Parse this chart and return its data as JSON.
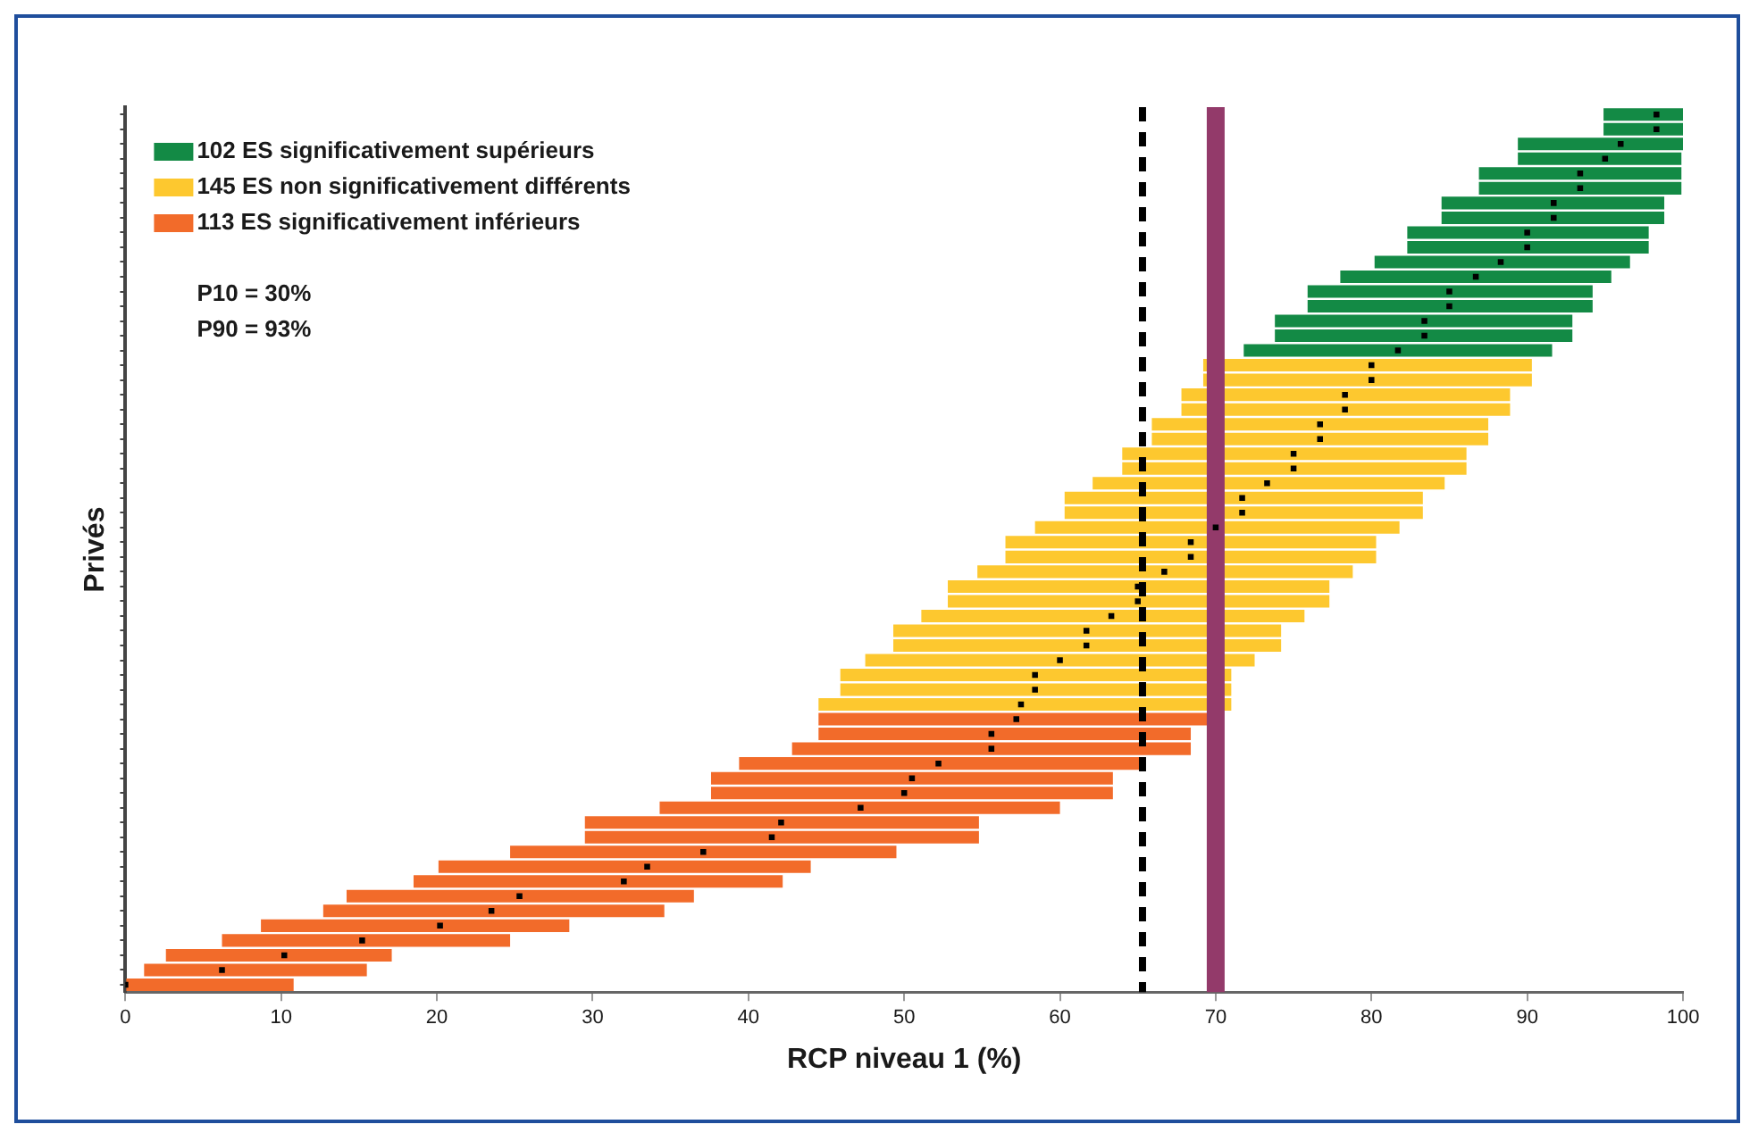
{
  "chart_data": {
    "type": "bar",
    "orientation": "horizontal",
    "xlabel": "RCP niveau 1 (%)",
    "ylabel": "Privés",
    "categories": [
      null,
      null,
      null,
      null,
      null,
      null,
      null,
      null,
      null,
      null,
      null,
      null,
      null,
      null,
      null,
      null,
      null,
      null,
      null,
      null,
      null,
      null,
      null,
      null,
      null,
      null,
      null,
      null,
      null,
      null,
      null,
      null,
      null,
      null,
      null,
      null,
      null,
      null,
      null,
      null,
      null,
      null,
      null,
      null,
      null,
      null,
      null,
      null,
      null,
      null,
      null,
      null,
      null,
      null,
      null,
      null,
      null,
      null,
      null,
      null
    ],
    "xlim": [
      0,
      100
    ],
    "xticks": [
      0,
      10,
      20,
      30,
      40,
      50,
      60,
      70,
      80,
      90,
      100
    ],
    "grid": false,
    "tick_labels": "x",
    "legend": "top left",
    "series": [
      {
        "name": "102 ES significativement supérieurs",
        "color": "#138a45",
        "base": [
          94.9,
          94.9,
          89.4,
          89.4,
          86.9,
          86.9,
          84.5,
          84.5,
          82.3,
          82.3,
          80.2,
          78.0,
          75.9,
          75.9,
          73.8,
          73.8,
          71.8,
          null,
          null,
          null,
          null,
          null,
          null,
          null,
          null,
          null,
          null,
          null,
          null,
          null,
          null,
          null,
          null,
          null,
          null,
          null,
          null,
          null,
          null,
          null,
          null,
          null,
          null,
          null,
          null,
          null,
          null,
          null,
          null,
          null,
          null,
          null,
          null,
          null,
          null,
          null,
          null,
          null,
          null,
          null
        ],
        "values": [
          5.1,
          5.1,
          10.6,
          10.5,
          13.0,
          13.0,
          14.3,
          14.3,
          15.5,
          15.5,
          16.4,
          17.4,
          18.3,
          18.3,
          19.1,
          19.1,
          19.8,
          null,
          null,
          null,
          null,
          null,
          null,
          null,
          null,
          null,
          null,
          null,
          null,
          null,
          null,
          null,
          null,
          null,
          null,
          null,
          null,
          null,
          null,
          null,
          null,
          null,
          null,
          null,
          null,
          null,
          null,
          null,
          null,
          null,
          null,
          null,
          null,
          null,
          null,
          null,
          null,
          null,
          null,
          null
        ]
      },
      {
        "name": "145 ES non significativement différents",
        "color": "#fdc82f",
        "base": [
          null,
          null,
          null,
          null,
          null,
          null,
          null,
          null,
          null,
          null,
          null,
          null,
          null,
          null,
          null,
          null,
          null,
          69.2,
          69.2,
          67.8,
          67.8,
          65.9,
          65.9,
          64.0,
          64.0,
          62.1,
          60.3,
          60.3,
          58.4,
          56.5,
          56.5,
          54.7,
          52.8,
          52.8,
          51.1,
          49.3,
          49.3,
          47.5,
          45.9,
          45.9,
          44.5,
          null,
          null,
          null,
          null,
          null,
          null,
          null,
          null,
          null,
          null,
          null,
          null,
          null,
          null,
          null,
          null,
          null,
          null,
          null
        ],
        "values": [
          null,
          null,
          null,
          null,
          null,
          null,
          null,
          null,
          null,
          null,
          null,
          null,
          null,
          null,
          null,
          null,
          null,
          21.1,
          21.1,
          21.1,
          21.1,
          21.6,
          21.6,
          22.1,
          22.1,
          22.6,
          23.0,
          23.0,
          23.4,
          23.8,
          23.8,
          24.1,
          24.5,
          24.5,
          24.6,
          24.9,
          24.9,
          25.0,
          25.1,
          25.1,
          26.5,
          null,
          null,
          null,
          null,
          null,
          null,
          null,
          null,
          null,
          null,
          null,
          null,
          null,
          null,
          null,
          null,
          null,
          null,
          null
        ]
      },
      {
        "name": "113 ES significativement inférieurs",
        "color": "#f26b2a",
        "base": [
          null,
          null,
          null,
          null,
          null,
          null,
          null,
          null,
          null,
          null,
          null,
          null,
          null,
          null,
          null,
          null,
          null,
          null,
          null,
          null,
          null,
          null,
          null,
          null,
          null,
          null,
          null,
          null,
          null,
          null,
          null,
          null,
          null,
          null,
          null,
          null,
          null,
          null,
          null,
          null,
          null,
          44.5,
          44.5,
          42.8,
          39.4,
          37.6,
          37.6,
          34.3,
          29.5,
          29.5,
          24.7,
          20.1,
          18.5,
          14.2,
          12.7,
          8.7,
          6.2,
          2.6,
          1.2,
          0
        ],
        "values": [
          null,
          null,
          null,
          null,
          null,
          null,
          null,
          null,
          null,
          null,
          null,
          null,
          null,
          null,
          null,
          null,
          null,
          null,
          null,
          null,
          null,
          null,
          null,
          null,
          null,
          null,
          null,
          null,
          null,
          null,
          null,
          null,
          null,
          null,
          null,
          null,
          null,
          null,
          null,
          null,
          null,
          25.3,
          23.9,
          25.6,
          25.7,
          25.8,
          25.8,
          25.7,
          25.3,
          25.3,
          24.8,
          23.9,
          23.7,
          22.3,
          21.9,
          19.8,
          18.5,
          14.5,
          14.3,
          10.8
        ]
      },
      {
        "type": "scatter",
        "color": "#000000",
        "marker": "square",
        "values": [
          98.3,
          98.3,
          96,
          95,
          93.4,
          93.4,
          91.7,
          91.7,
          90,
          90,
          88.3,
          86.7,
          85,
          85,
          83.4,
          83.4,
          81.7,
          80.0,
          80.0,
          78.3,
          78.3,
          76.7,
          76.7,
          75.0,
          75.0,
          73.3,
          71.7,
          71.7,
          70.0,
          68.4,
          68.4,
          66.7,
          65.0,
          65.0,
          63.3,
          61.7,
          61.7,
          60.0,
          58.4,
          58.4,
          57.5,
          57.2,
          55.6,
          55.6,
          52.2,
          50.5,
          50.0,
          47.2,
          42.1,
          41.5,
          37.1,
          33.5,
          32.0,
          25.3,
          23.5,
          20.2,
          15.2,
          10.2,
          6.2,
          0
        ]
      }
    ],
    "ref_lines": [
      {
        "axis": "x",
        "value": 65.3,
        "color": "#000000",
        "line_style": "dashed"
      },
      {
        "axis": "x",
        "value": 70,
        "color": "#933a6a",
        "line_style": "solid"
      }
    ],
    "annotations": [
      "P10 = 30%",
      "P90 = 93%"
    ]
  }
}
